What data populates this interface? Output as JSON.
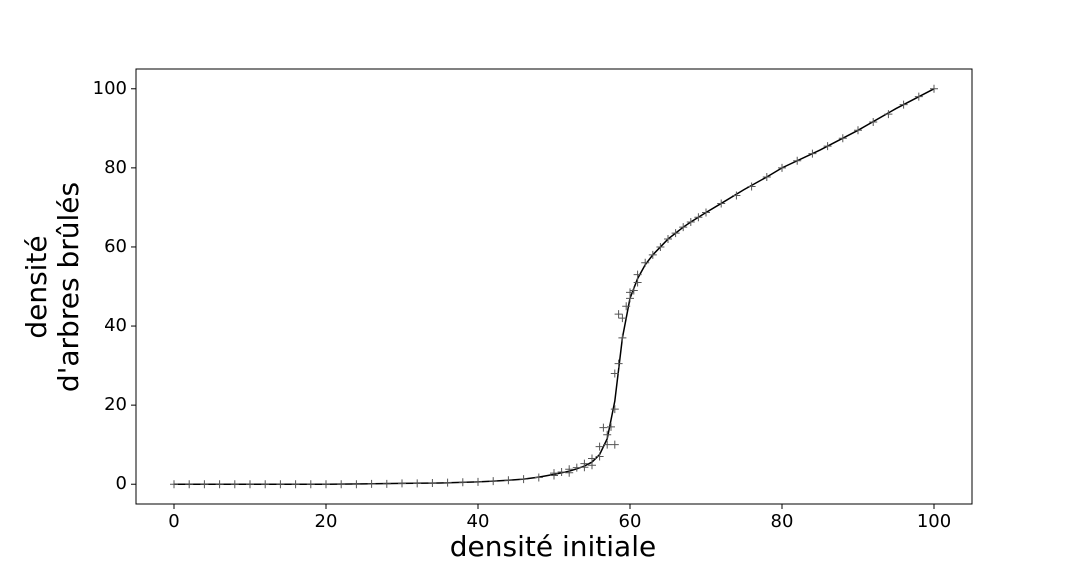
{
  "chart_data": {
    "type": "line",
    "xlabel": "densité initiale",
    "ylabel": [
      "densité",
      "d'arbres brûlés"
    ],
    "xlim": [
      -5,
      105
    ],
    "ylim": [
      -5,
      105
    ],
    "xticks": [
      0,
      20,
      40,
      60,
      80,
      100
    ],
    "yticks": [
      0,
      20,
      40,
      60,
      80,
      100
    ],
    "grid": false,
    "series": [
      {
        "color": "#000000",
        "marker": "none",
        "x": [
          0,
          5,
          10,
          15,
          20,
          25,
          30,
          35,
          40,
          42,
          44,
          46,
          48,
          50,
          51,
          52,
          53,
          54,
          55,
          56,
          57,
          58,
          59,
          60,
          61,
          62,
          63,
          64,
          65,
          66,
          67,
          68,
          70,
          72,
          75,
          78,
          80,
          85,
          90,
          95,
          100
        ],
        "values": [
          0,
          0,
          0,
          0,
          0,
          0.1,
          0.2,
          0.3,
          0.6,
          0.8,
          1,
          1.3,
          1.8,
          2.5,
          2.9,
          3.3,
          3.9,
          4.6,
          5.6,
          7.5,
          11.5,
          21,
          37,
          47,
          52,
          55.5,
          58,
          60,
          62,
          63.5,
          65,
          66.3,
          68.7,
          71,
          74.5,
          77.7,
          80,
          84.5,
          89.5,
          95,
          100
        ]
      },
      {
        "color": "#555555",
        "marker": "+",
        "x": [
          0,
          2,
          4,
          6,
          8,
          10,
          12,
          14,
          16,
          18,
          20,
          22,
          24,
          26,
          28,
          30,
          32,
          34,
          36,
          38,
          40,
          42,
          44,
          46,
          48,
          50,
          50,
          51,
          52,
          52,
          53,
          54,
          54,
          55,
          55,
          56,
          56,
          56.5,
          57,
          57,
          57.5,
          58,
          58,
          58,
          58.5,
          58.5,
          59,
          59,
          59.5,
          60,
          60,
          60.5,
          61,
          61,
          62,
          63,
          64,
          65,
          66,
          67,
          68,
          69,
          70,
          72,
          74,
          76,
          78,
          80,
          82,
          84,
          86,
          88,
          90,
          92,
          94,
          96,
          98,
          100
        ],
        "values": [
          0,
          0,
          0,
          0,
          0,
          0,
          0,
          0,
          0,
          0,
          0,
          0,
          0,
          0.1,
          0.1,
          0.2,
          0.2,
          0.3,
          0.4,
          0.5,
          0.6,
          0.8,
          1,
          1.3,
          1.7,
          2.2,
          2.8,
          3.1,
          2.9,
          3.8,
          4.2,
          4.3,
          5.2,
          4.8,
          6.5,
          7,
          9.5,
          14.3,
          10,
          12.5,
          14.5,
          10,
          19,
          28,
          30.5,
          43,
          37,
          42,
          45,
          47,
          48.5,
          49,
          51,
          53,
          56,
          58,
          60,
          62,
          63.5,
          65,
          66.3,
          67.5,
          68.7,
          71,
          73,
          75.3,
          77.7,
          80,
          81.8,
          83.6,
          85.5,
          87.5,
          89.5,
          91.6,
          93.6,
          96,
          98,
          100
        ]
      }
    ]
  }
}
